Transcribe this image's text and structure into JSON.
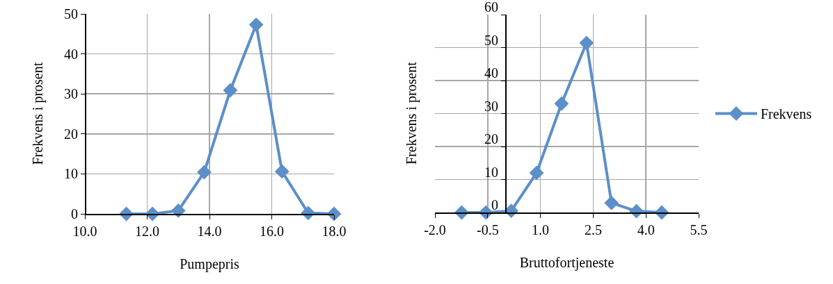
{
  "chart_data": [
    {
      "type": "line",
      "xlabel": "Pumpepris",
      "ylabel": "Frekvens i prosent",
      "x": [
        11.33,
        12.17,
        13.0,
        13.83,
        14.67,
        15.5,
        16.33,
        17.17,
        18.0
      ],
      "series": [
        {
          "color": "#5b8fc9",
          "values": [
            0,
            0,
            0.8,
            10.4,
            30.9,
            47.3,
            10.6,
            0.2,
            0
          ]
        }
      ],
      "xlim": [
        10,
        18
      ],
      "xticks": [
        {
          "value": 10,
          "label": "10.0"
        },
        {
          "value": 12,
          "label": "12.0"
        },
        {
          "value": 14,
          "label": "14.0"
        },
        {
          "value": 16,
          "label": "16.0"
        },
        {
          "value": 18,
          "label": "18.0"
        }
      ],
      "ylim": [
        0,
        50
      ],
      "yticks": [
        0,
        10,
        20,
        30,
        40,
        50
      ],
      "grid": true,
      "marker": "diamond",
      "line_style": "solid"
    },
    {
      "type": "line",
      "xlabel": "Bruttofortjeneste",
      "ylabel": "Frekvens i prosent",
      "x": [
        -1.24,
        -0.55,
        0.17,
        0.89,
        1.6,
        2.31,
        3.02,
        3.73,
        4.45
      ],
      "series": [
        {
          "name": "Frekvens",
          "color": "#5b8fc9",
          "values": [
            0,
            0,
            0.5,
            12,
            33,
            51.4,
            2.9,
            0.4,
            0
          ]
        }
      ],
      "xlim": [
        -2,
        5.5
      ],
      "xticks": [
        {
          "value": -2,
          "label": "-2.0"
        },
        {
          "value": -0.5,
          "label": "-0.5"
        },
        {
          "value": 1,
          "label": "1.0"
        },
        {
          "value": 2.5,
          "label": "2.5"
        },
        {
          "value": 4,
          "label": "4.0"
        },
        {
          "value": 5.5,
          "label": "5.5"
        }
      ],
      "ylim": [
        0,
        60
      ],
      "yticks": [
        0,
        10,
        20,
        30,
        40,
        50,
        60
      ],
      "grid": true,
      "legend": "right",
      "marker": "diamond",
      "line_style": "solid"
    }
  ]
}
